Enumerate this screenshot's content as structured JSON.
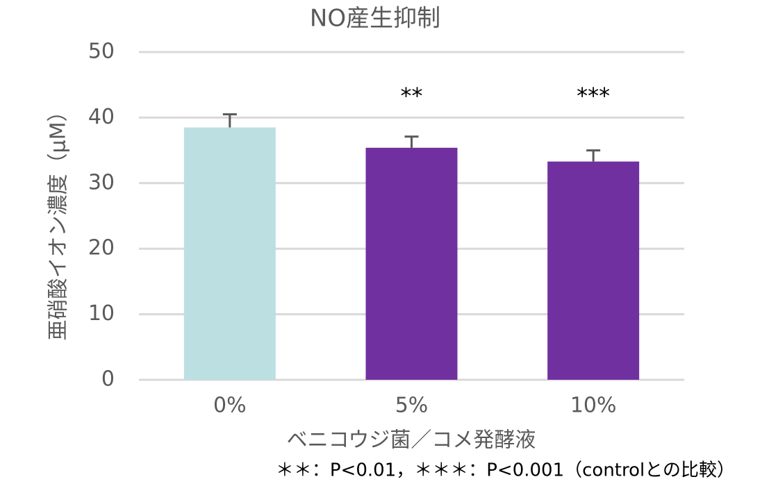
{
  "chart_data": {
    "type": "bar",
    "title": "NO産生抑制",
    "y_label": "亜硝酸イオン濃度（μM）",
    "x_label": "ベニコウジ菌／コメ発酵液",
    "footnote": "＊＊：P<0.01，＊＊＊：P<0.001（controlとの比較）",
    "categories": [
      "0%",
      "5%",
      "10%"
    ],
    "values": [
      38.5,
      35.4,
      33.3
    ],
    "errors": [
      2.0,
      1.7,
      1.7
    ],
    "colors": [
      "#bcdfe2",
      "#7030a0",
      "#7030a0"
    ],
    "annotations": [
      null,
      "**",
      "***"
    ],
    "ylim": [
      0,
      50
    ],
    "yticks": [
      0,
      10,
      20,
      30,
      40,
      50
    ],
    "grid": true
  }
}
